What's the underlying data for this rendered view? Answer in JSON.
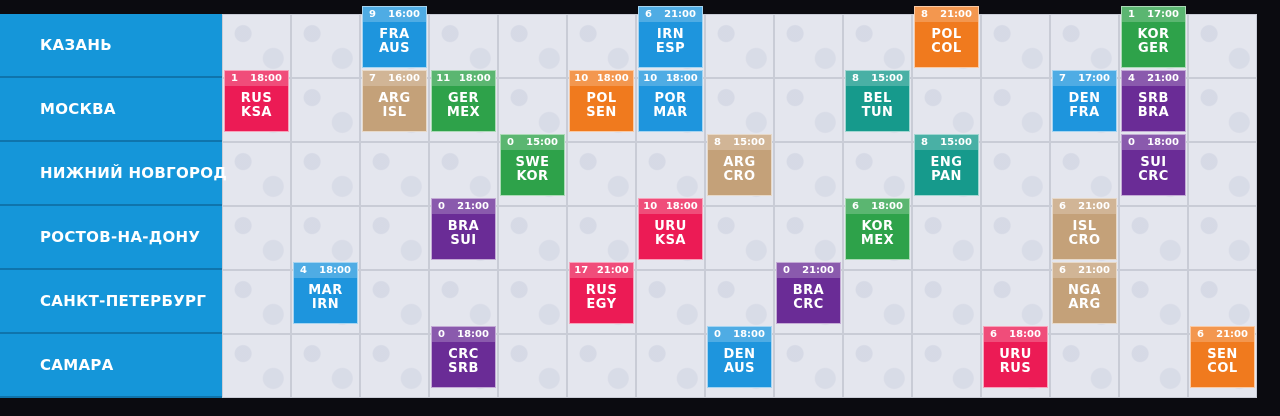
{
  "colors": {
    "blue": "#1e95dd",
    "orange": "#f07a1e",
    "green": "#2ea24a",
    "red": "#ec1b55",
    "tan": "#c4a179",
    "teal": "#169a8c",
    "purple": "#6a2c96",
    "city_bg": "#1596d9"
  },
  "cities": [
    "КАЗАНЬ",
    "МОСКВА",
    "НИЖНИЙ НОВГОРОД",
    "РОСТОВ-НА-ДОНУ",
    "САНКТ-ПЕТЕРБУРГ",
    "САМАРА"
  ],
  "matches": [
    {
      "row": 0,
      "col": 2,
      "color": "blue",
      "num": "9",
      "time": "16:00",
      "home": "FRA",
      "away": "AUS"
    },
    {
      "row": 0,
      "col": 6,
      "color": "blue",
      "num": "6",
      "time": "21:00",
      "home": "IRN",
      "away": "ESP"
    },
    {
      "row": 0,
      "col": 10,
      "color": "orange",
      "num": "8",
      "time": "21:00",
      "home": "POL",
      "away": "COL"
    },
    {
      "row": 0,
      "col": 13,
      "color": "green",
      "num": "1",
      "time": "17:00",
      "home": "KOR",
      "away": "GER"
    },
    {
      "row": 1,
      "col": 0,
      "color": "red",
      "num": "1",
      "time": "18:00",
      "home": "RUS",
      "away": "KSA"
    },
    {
      "row": 1,
      "col": 2,
      "color": "tan",
      "num": "7",
      "time": "16:00",
      "home": "ARG",
      "away": "ISL"
    },
    {
      "row": 1,
      "col": 3,
      "color": "green",
      "num": "11",
      "time": "18:00",
      "home": "GER",
      "away": "MEX"
    },
    {
      "row": 1,
      "col": 5,
      "color": "orange",
      "num": "10",
      "time": "18:00",
      "home": "POL",
      "away": "SEN"
    },
    {
      "row": 1,
      "col": 6,
      "color": "blue",
      "num": "10",
      "time": "18:00",
      "home": "POR",
      "away": "MAR"
    },
    {
      "row": 1,
      "col": 9,
      "color": "teal",
      "num": "8",
      "time": "15:00",
      "home": "BEL",
      "away": "TUN"
    },
    {
      "row": 1,
      "col": 12,
      "color": "blue",
      "num": "7",
      "time": "17:00",
      "home": "DEN",
      "away": "FRA"
    },
    {
      "row": 1,
      "col": 13,
      "color": "purple",
      "num": "4",
      "time": "21:00",
      "home": "SRB",
      "away": "BRA"
    },
    {
      "row": 2,
      "col": 4,
      "color": "green",
      "num": "0",
      "time": "15:00",
      "home": "SWE",
      "away": "KOR"
    },
    {
      "row": 2,
      "col": 7,
      "color": "tan",
      "num": "8",
      "time": "15:00",
      "home": "ARG",
      "away": "CRO"
    },
    {
      "row": 2,
      "col": 10,
      "color": "teal",
      "num": "8",
      "time": "15:00",
      "home": "ENG",
      "away": "PAN"
    },
    {
      "row": 2,
      "col": 13,
      "color": "purple",
      "num": "0",
      "time": "18:00",
      "home": "SUI",
      "away": "CRC"
    },
    {
      "row": 3,
      "col": 3,
      "color": "purple",
      "num": "0",
      "time": "21:00",
      "home": "BRA",
      "away": "SUI"
    },
    {
      "row": 3,
      "col": 6,
      "color": "red",
      "num": "10",
      "time": "18:00",
      "home": "URU",
      "away": "KSA"
    },
    {
      "row": 3,
      "col": 9,
      "color": "green",
      "num": "6",
      "time": "18:00",
      "home": "KOR",
      "away": "MEX"
    },
    {
      "row": 3,
      "col": 12,
      "color": "tan",
      "num": "6",
      "time": "21:00",
      "home": "ISL",
      "away": "CRO"
    },
    {
      "row": 4,
      "col": 1,
      "color": "blue",
      "num": "4",
      "time": "18:00",
      "home": "MAR",
      "away": "IRN"
    },
    {
      "row": 4,
      "col": 5,
      "color": "red",
      "num": "17",
      "time": "21:00",
      "home": "RUS",
      "away": "EGY"
    },
    {
      "row": 4,
      "col": 8,
      "color": "purple",
      "num": "0",
      "time": "21:00",
      "home": "BRA",
      "away": "CRC"
    },
    {
      "row": 4,
      "col": 12,
      "color": "tan",
      "num": "6",
      "time": "21:00",
      "home": "NGA",
      "away": "ARG"
    },
    {
      "row": 5,
      "col": 3,
      "color": "purple",
      "num": "0",
      "time": "18:00",
      "home": "CRC",
      "away": "SRB"
    },
    {
      "row": 5,
      "col": 7,
      "color": "blue",
      "num": "0",
      "time": "18:00",
      "home": "DEN",
      "away": "AUS"
    },
    {
      "row": 5,
      "col": 11,
      "color": "red",
      "num": "6",
      "time": "18:00",
      "home": "URU",
      "away": "RUS"
    },
    {
      "row": 5,
      "col": 14,
      "color": "orange",
      "num": "6",
      "time": "21:00",
      "home": "SEN",
      "away": "COL"
    }
  ]
}
